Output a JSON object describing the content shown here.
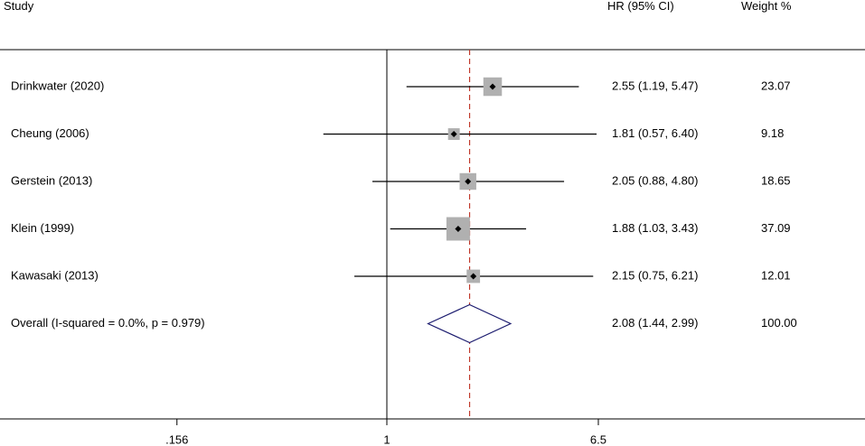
{
  "chart_data": {
    "type": "forest",
    "headers": {
      "study": "Study",
      "estimate": "HR (95% CI)",
      "weight": "Weight %"
    },
    "x_scale": "log",
    "null_value": 1,
    "pooled_estimate_line": 2.08,
    "ticks": [
      {
        "value": 0.156,
        "label": ".156"
      },
      {
        "value": 1,
        "label": "1"
      },
      {
        "value": 6.5,
        "label": "6.5"
      }
    ],
    "studies": [
      {
        "label": "Drinkwater (2020)",
        "hr": 2.55,
        "lower": 1.19,
        "upper": 5.47,
        "ci_text": "2.55 (1.19, 5.47)",
        "weight": 23.07,
        "weight_text": "23.07"
      },
      {
        "label": "Cheung (2006)",
        "hr": 1.81,
        "lower": 0.57,
        "upper": 6.4,
        "ci_text": "1.81 (0.57, 6.40)",
        "weight": 9.18,
        "weight_text": "9.18"
      },
      {
        "label": "Gerstein  (2013)",
        "hr": 2.05,
        "lower": 0.88,
        "upper": 4.8,
        "ci_text": "2.05 (0.88, 4.80)",
        "weight": 18.65,
        "weight_text": "18.65"
      },
      {
        "label": "Klein (1999)",
        "hr": 1.88,
        "lower": 1.03,
        "upper": 3.43,
        "ci_text": "1.88 (1.03, 3.43)",
        "weight": 37.09,
        "weight_text": "37.09"
      },
      {
        "label": "Kawasaki (2013)",
        "hr": 2.15,
        "lower": 0.75,
        "upper": 6.21,
        "ci_text": "2.15 (0.75, 6.21)",
        "weight": 12.01,
        "weight_text": "12.01"
      }
    ],
    "overall": {
      "label": "Overall  (I-squared = 0.0%, p = 0.979)",
      "hr": 2.08,
      "lower": 1.44,
      "upper": 2.99,
      "ci_text": "2.08 (1.44, 2.99)",
      "weight_text": "100.00"
    },
    "colors": {
      "axis": "#000000",
      "ci_line": "#000000",
      "weight_box": "#b0b0b0",
      "point": "#000000",
      "diamond": "#1a1a6e",
      "pooled_line": "#c0392b"
    }
  }
}
